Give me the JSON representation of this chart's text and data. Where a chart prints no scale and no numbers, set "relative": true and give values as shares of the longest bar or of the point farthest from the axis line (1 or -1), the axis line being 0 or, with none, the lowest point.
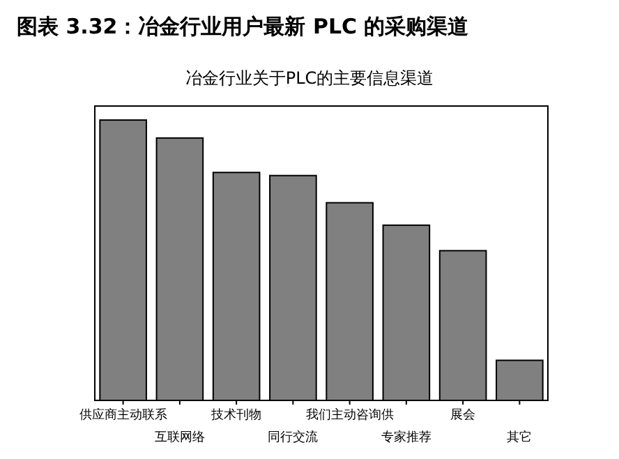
{
  "chart_data": {
    "type": "bar",
    "title": "图表 3.32：冶金行业用户最新 PLC 的采购渠道",
    "subtitle": "冶金行业关于PLC的主要信息渠道",
    "relative": true,
    "color": "#808080",
    "categories": [
      "供应商主动联系",
      "互联网络",
      "技术刊物",
      "同行交流",
      "我们主动咨询供",
      "专家推荐",
      "展会",
      "其它"
    ],
    "values": [
      1,
      0.936,
      0.813,
      0.802,
      0.705,
      0.625,
      0.534,
      0.143
    ]
  }
}
